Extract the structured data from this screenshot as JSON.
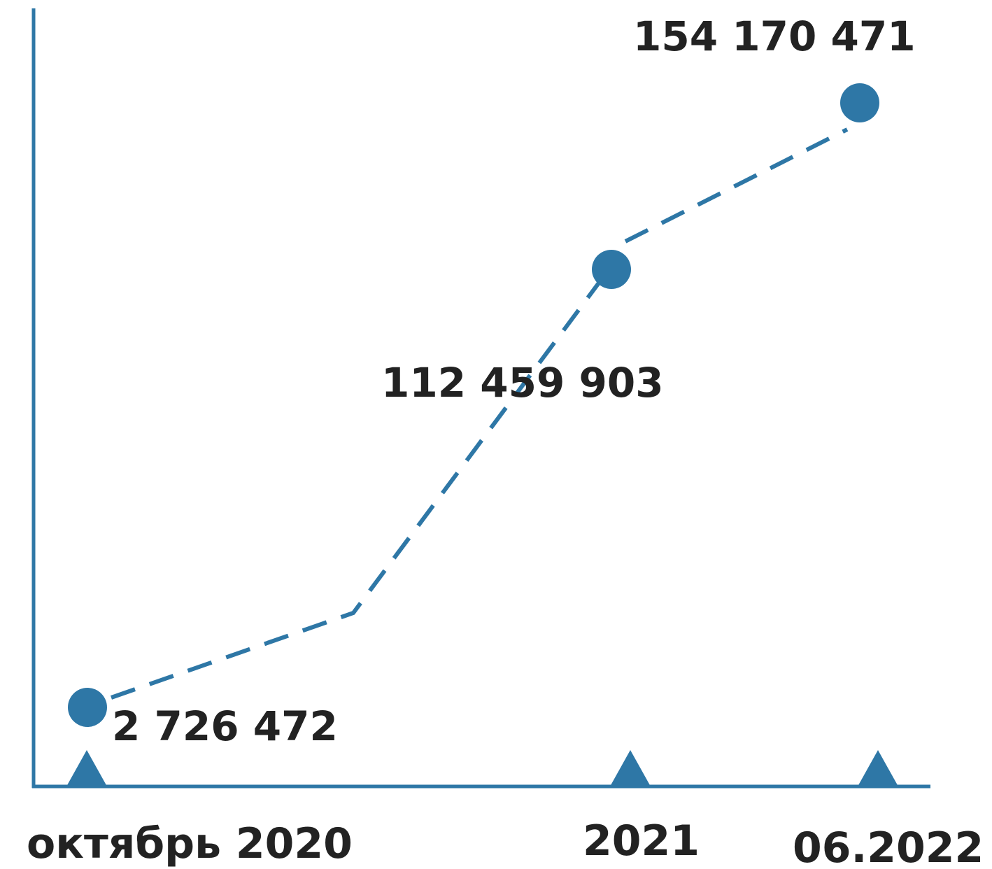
{
  "chart_data": {
    "type": "line",
    "title": "",
    "xlabel": "",
    "ylabel": "",
    "categories": [
      "октябрь 2020",
      "2021",
      "06.2022"
    ],
    "values": [
      2726472,
      112459903,
      154170471
    ],
    "value_labels": [
      "2 726 472",
      "112 459 903",
      "154 170 471"
    ],
    "line_style": "dashed",
    "grid": false,
    "legend": "none",
    "colors": {
      "series": "#2e77a6",
      "axis": "#2e77a6",
      "text": "#222222"
    }
  }
}
